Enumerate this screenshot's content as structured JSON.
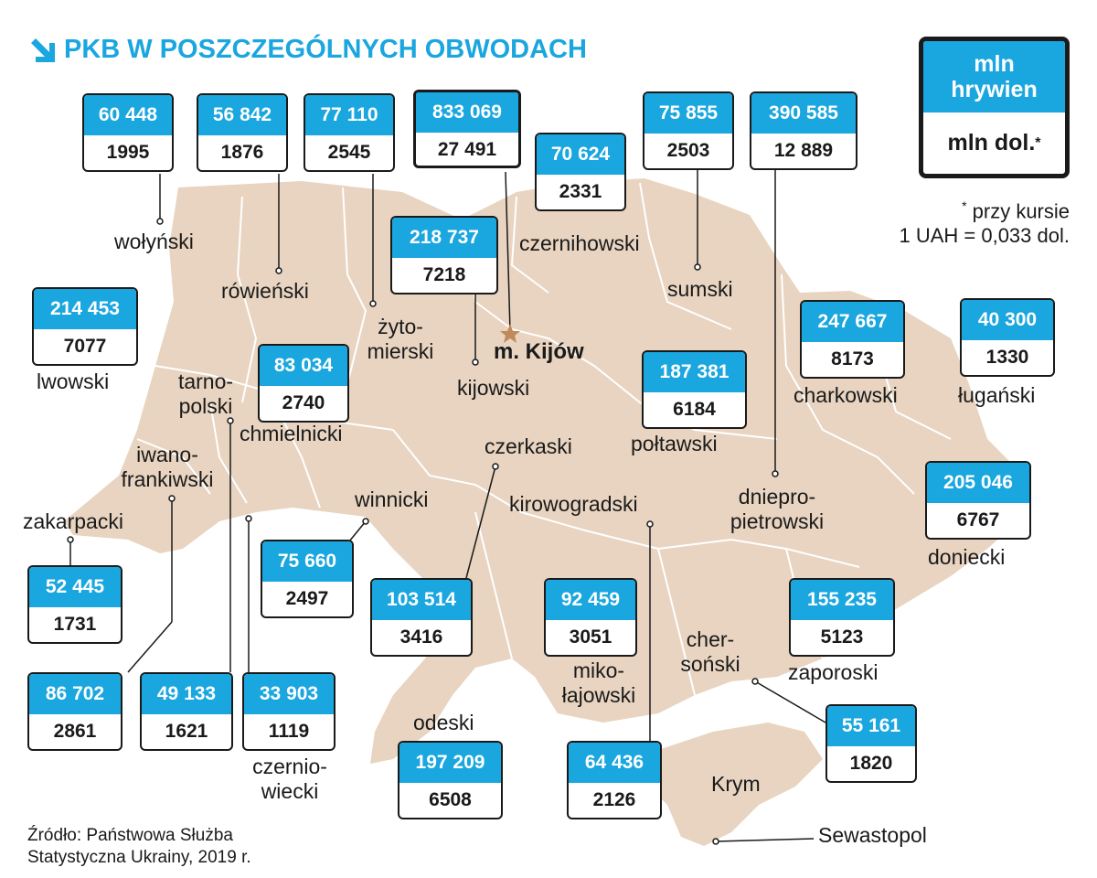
{
  "title": "PKB W POSZCZEGÓLNYCH OBWODACH",
  "legend": {
    "uah_unit": "mln hrywien",
    "usd_unit": "mln dol.",
    "usd_marker": "*"
  },
  "footnote": {
    "marker": "*",
    "line1": "przy kursie",
    "line2": "1 UAH = 0,033 dol."
  },
  "source": {
    "line1": "Źródło: Państwowa Służba",
    "line2": "Statystyczna Ukrainy, 2019 r."
  },
  "colors": {
    "accent": "#1aa6de",
    "land": "#e8d4c0",
    "border": "#ffffff",
    "text": "#1a1a1a"
  },
  "regions": [
    {
      "name": "wołyński",
      "uah": "60 448",
      "usd": "1995"
    },
    {
      "name": "rówieński",
      "uah": "56 842",
      "usd": "1876"
    },
    {
      "name": "żyto- mierski",
      "uah": "77 110",
      "usd": "2545"
    },
    {
      "name": "m. Kijów",
      "uah": "833 069",
      "usd": "27 491"
    },
    {
      "name": "czernihowski",
      "uah": "70 624",
      "usd": "2331"
    },
    {
      "name": "sumski",
      "uah": "75 855",
      "usd": "2503"
    },
    {
      "name": "dniepro- pietrowski",
      "uah": "390 585",
      "usd": "12 889"
    },
    {
      "name": "kijowski",
      "uah": "218 737",
      "usd": "7218"
    },
    {
      "name": "lwowski",
      "uah": "214 453",
      "usd": "7077"
    },
    {
      "name": "chmielnicki",
      "uah": "83 034",
      "usd": "2740"
    },
    {
      "name": "charkowski",
      "uah": "247 667",
      "usd": "8173"
    },
    {
      "name": "ługański",
      "uah": "40 300",
      "usd": "1330"
    },
    {
      "name": "połtawski",
      "uah": "187 381",
      "usd": "6184"
    },
    {
      "name": "doniecki",
      "uah": "205 046",
      "usd": "6767"
    },
    {
      "name": "zakarpacki",
      "uah": "52 445",
      "usd": "1731"
    },
    {
      "name": "winnicki",
      "uah": "75 660",
      "usd": "2497"
    },
    {
      "name": "czerkaski",
      "uah": "103 514",
      "usd": "3416"
    },
    {
      "name": "miko- łajowski",
      "uah": "92 459",
      "usd": "3051"
    },
    {
      "name": "zaporoski",
      "uah": "155 235",
      "usd": "5123"
    },
    {
      "name": "iwano- frankiwski",
      "uah": "86 702",
      "usd": "2861"
    },
    {
      "name": "tarno- polski",
      "uah": "49 133",
      "usd": "1621"
    },
    {
      "name": "czernio- wiecki",
      "uah": "33 903",
      "usd": "1119"
    },
    {
      "name": "cher- soński",
      "uah": "55 161",
      "usd": "1820"
    },
    {
      "name": "odeski",
      "uah": "197 209",
      "usd": "6508"
    },
    {
      "name": "kirowogradski",
      "uah": "64 436",
      "usd": "2126"
    }
  ],
  "map_labels": {
    "crimea": "Krym",
    "sevastopol": "Sewastopol"
  }
}
